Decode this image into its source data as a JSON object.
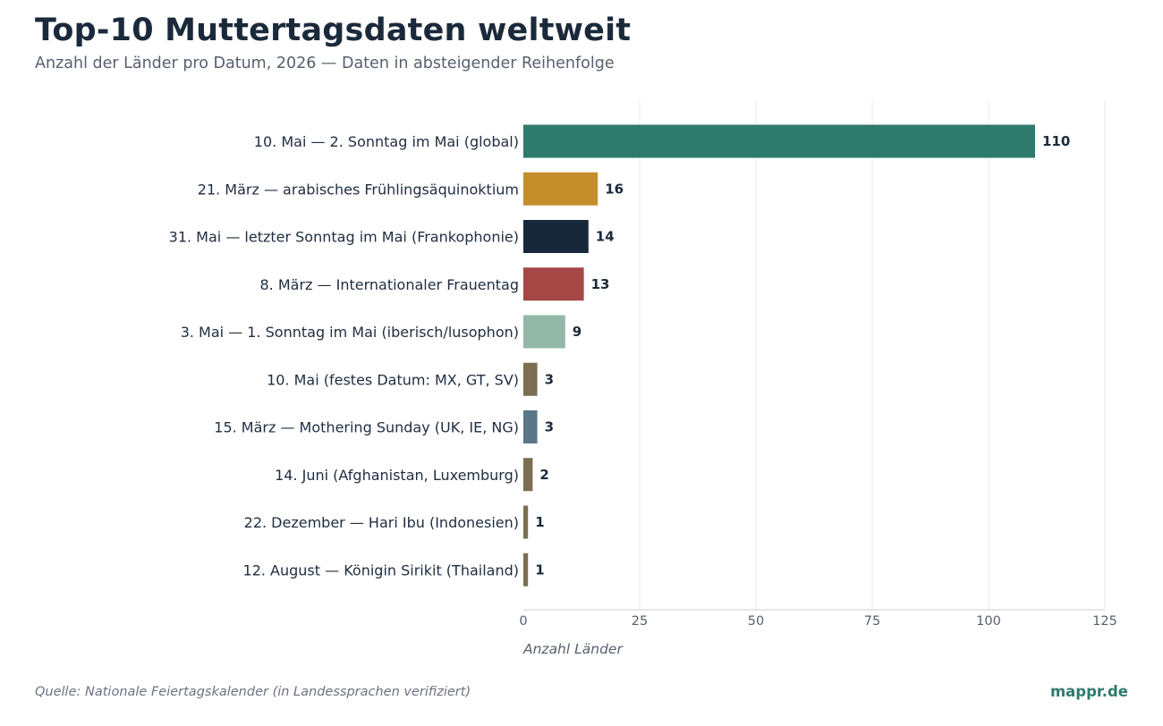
{
  "header": {
    "title": "Top-10 Muttertagsdaten weltweit",
    "subtitle": "Anzahl der Länder pro Datum, 2026 — Daten in absteigender Reihenfolge"
  },
  "footer": {
    "source": "Quelle: Nationale Feiertagskalender (in Landessprachen verifiziert)",
    "brand": "mappr.de"
  },
  "chart_data": {
    "type": "bar",
    "orientation": "horizontal",
    "title": "Top-10 Muttertagsdaten weltweit",
    "subtitle": "Anzahl der Länder pro Datum, 2026 — Daten in absteigender Reihenfolge",
    "xlabel": "Anzahl Länder",
    "ylabel": "",
    "xlim": [
      0,
      125
    ],
    "xticks": [
      0,
      25,
      50,
      75,
      100,
      125
    ],
    "grid": true,
    "categories": [
      "10. Mai — 2. Sonntag im Mai (global)",
      "21. März — arabisches Frühlingsäquinoktium",
      "31. Mai — letzter Sonntag im Mai (Frankophonie)",
      "8. März — Internationaler Frauentag",
      "3. Mai — 1. Sonntag im Mai (iberisch/lusophon)",
      "10. Mai (festes Datum: MX, GT, SV)",
      "15. März — Mothering Sunday (UK, IE, NG)",
      "14. Juni (Afghanistan, Luxemburg)",
      "22. Dezember — Hari Ibu (Indonesien)",
      "12. August — Königin Sirikit (Thailand)"
    ],
    "values": [
      110,
      16,
      14,
      13,
      9,
      3,
      3,
      2,
      1,
      1
    ],
    "colors": [
      "#2e7b6d",
      "#c48e2a",
      "#18283b",
      "#a44745",
      "#93b8aa",
      "#7b6e51",
      "#5a7787",
      "#7b6e51",
      "#7b6e51",
      "#7b6e51"
    ]
  }
}
